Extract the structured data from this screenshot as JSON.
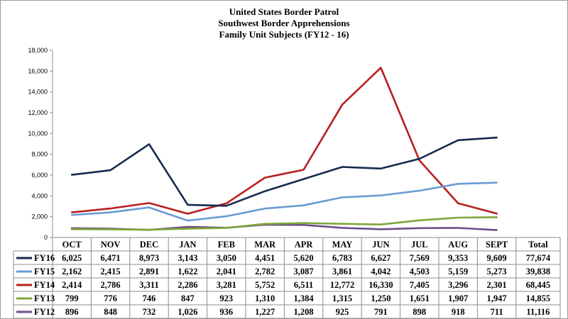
{
  "chart_data": {
    "type": "line",
    "title": [
      "United States Border Patrol",
      "Southwest Border Apprehensions",
      "Family Unit Subjects (FY12 - 16)"
    ],
    "categories": [
      "OCT",
      "NOV",
      "DEC",
      "JAN",
      "FEB",
      "MAR",
      "APR",
      "MAY",
      "JUN",
      "JUL",
      "AUG",
      "SEPT"
    ],
    "total_label": "Total",
    "ylim": [
      0,
      18000
    ],
    "yticks": [
      "0",
      "2,000",
      "4,000",
      "6,000",
      "8,000",
      "10,000",
      "12,000",
      "14,000",
      "16,000",
      "18,000"
    ],
    "ytick_values": [
      0,
      2000,
      4000,
      6000,
      8000,
      10000,
      12000,
      14000,
      16000,
      18000
    ],
    "grid": false,
    "legend": "data-table-below",
    "series": [
      {
        "name": "FY16",
        "color": "#17294f",
        "values": [
          6025,
          6471,
          8973,
          3143,
          3050,
          4451,
          5620,
          6783,
          6627,
          7569,
          9353,
          9609
        ],
        "labels": [
          "6,025",
          "6,471",
          "8,973",
          "3,143",
          "3,050",
          "4,451",
          "5,620",
          "6,783",
          "6,627",
          "7,569",
          "9,353",
          "9,609"
        ],
        "total": "77,674"
      },
      {
        "name": "FY15",
        "color": "#6a9bd3",
        "values": [
          2162,
          2415,
          2891,
          1622,
          2041,
          2782,
          3087,
          3861,
          4042,
          4503,
          5159,
          5273
        ],
        "labels": [
          "2,162",
          "2,415",
          "2,891",
          "1,622",
          "2,041",
          "2,782",
          "3,087",
          "3,861",
          "4,042",
          "4,503",
          "5,159",
          "5,273"
        ],
        "total": "39,838"
      },
      {
        "name": "FY14",
        "color": "#b81f1f",
        "values": [
          2414,
          2786,
          3311,
          2286,
          3281,
          5752,
          6511,
          12772,
          16330,
          7405,
          3296,
          2301
        ],
        "labels": [
          "2,414",
          "2,786",
          "3,311",
          "2,286",
          "3,281",
          "5,752",
          "6,511",
          "12,772",
          "16,330",
          "7,405",
          "3,296",
          "2,301"
        ],
        "total": "68,445"
      },
      {
        "name": "FY13",
        "color": "#7fa63a",
        "values": [
          799,
          776,
          746,
          847,
          923,
          1310,
          1384,
          1315,
          1250,
          1651,
          1907,
          1947
        ],
        "labels": [
          "799",
          "776",
          "746",
          "847",
          "923",
          "1,310",
          "1,384",
          "1,315",
          "1,250",
          "1,651",
          "1,907",
          "1,947"
        ],
        "total": "14,855"
      },
      {
        "name": "FY12",
        "color": "#6b4e8a",
        "values": [
          896,
          848,
          732,
          1026,
          936,
          1227,
          1208,
          925,
          791,
          898,
          918,
          711
        ],
        "labels": [
          "896",
          "848",
          "732",
          "1,026",
          "936",
          "1,227",
          "1,208",
          "925",
          "791",
          "898",
          "918",
          "711"
        ],
        "total": "11,116"
      }
    ]
  }
}
